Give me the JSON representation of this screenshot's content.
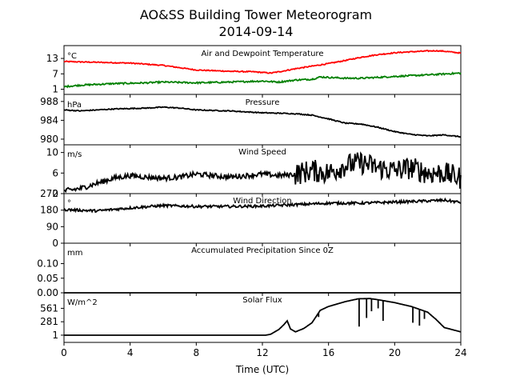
{
  "chart_data": {
    "title": "AO&SS Building Tower Meteorogram",
    "subtitle": "2014-09-14",
    "xlabel": "Time (UTC)",
    "x_ticks": [
      0,
      4,
      8,
      12,
      16,
      20,
      24
    ],
    "xlim": [
      0,
      24
    ],
    "panels": [
      {
        "type": "line",
        "title": "Air and Dewpoint Temperature",
        "unit": "°C",
        "ylim": [
          -1,
          18
        ],
        "y_ticks": [
          1,
          7,
          13
        ],
        "series": [
          {
            "color": "#ff0000",
            "noise": 0.2,
            "points": [
              [
                0,
                11.8
              ],
              [
                2,
                11.5
              ],
              [
                4,
                11.2
              ],
              [
                6,
                10.3
              ],
              [
                8,
                8.5
              ],
              [
                10,
                8
              ],
              [
                11.5,
                7.8
              ],
              [
                12.5,
                7.3
              ],
              [
                13,
                7.8
              ],
              [
                14,
                9
              ],
              [
                15,
                10
              ],
              [
                16,
                11
              ],
              [
                17,
                12.2
              ],
              [
                18,
                13.5
              ],
              [
                19,
                14.5
              ],
              [
                20,
                15.2
              ],
              [
                21,
                15.6
              ],
              [
                22,
                15.9
              ],
              [
                22.5,
                16
              ],
              [
                23,
                15.8
              ],
              [
                24,
                15.1
              ]
            ]
          },
          {
            "color": "#008000",
            "noise": 0.3,
            "points": [
              [
                0,
                2
              ],
              [
                1,
                2.6
              ],
              [
                3,
                3.2
              ],
              [
                5,
                3.5
              ],
              [
                6,
                3.8
              ],
              [
                8,
                3.5
              ],
              [
                10,
                3.8
              ],
              [
                12,
                4.2
              ],
              [
                13,
                3.8
              ],
              [
                14,
                4.6
              ],
              [
                15,
                4.9
              ],
              [
                15.5,
                5.8
              ],
              [
                17,
                5.3
              ],
              [
                18,
                5.3
              ],
              [
                20,
                6
              ],
              [
                22,
                6.6
              ],
              [
                24,
                7.3
              ]
            ]
          }
        ]
      },
      {
        "type": "line",
        "title": "Pressure",
        "unit": "hPa",
        "ylim": [
          978.8,
          989.5
        ],
        "y_ticks": [
          980,
          984,
          988
        ],
        "series": [
          {
            "color": "#000000",
            "noise": 0.1,
            "points": [
              [
                0,
                986.2
              ],
              [
                1,
                986
              ],
              [
                3,
                986.4
              ],
              [
                5,
                986.6
              ],
              [
                6,
                986.8
              ],
              [
                7,
                986.6
              ],
              [
                8,
                986.2
              ],
              [
                10,
                986
              ],
              [
                12,
                985.6
              ],
              [
                14,
                985.4
              ],
              [
                15,
                985.1
              ],
              [
                16,
                984.3
              ],
              [
                17,
                983.4
              ],
              [
                18,
                983.2
              ],
              [
                19,
                982.5
              ],
              [
                20,
                981.6
              ],
              [
                21,
                981
              ],
              [
                22,
                980.7
              ],
              [
                23,
                980.9
              ],
              [
                24,
                980.5
              ]
            ]
          }
        ]
      },
      {
        "type": "line",
        "title": "Wind Speed",
        "unit": "m/s",
        "ylim": [
          2,
          11.5
        ],
        "y_ticks": [
          2,
          6,
          10
        ],
        "series": [
          {
            "color": "#000000",
            "noise": 0.5,
            "noise_ramp": [
              14,
              24,
              2.2
            ],
            "points": [
              [
                0,
                2.5
              ],
              [
                1,
                3
              ],
              [
                2,
                4
              ],
              [
                3,
                5
              ],
              [
                4,
                5.5
              ],
              [
                5,
                5.2
              ],
              [
                6,
                5
              ],
              [
                7,
                5.2
              ],
              [
                8,
                5.8
              ],
              [
                9,
                5.5
              ],
              [
                10,
                5.2
              ],
              [
                11,
                5.5
              ],
              [
                12,
                5.8
              ],
              [
                13,
                5.5
              ],
              [
                14,
                5.8
              ],
              [
                15,
                6.5
              ],
              [
                16,
                6
              ],
              [
                17,
                7.5
              ],
              [
                18,
                8
              ],
              [
                19,
                7
              ],
              [
                20,
                6.5
              ],
              [
                21,
                7
              ],
              [
                22,
                6
              ],
              [
                23,
                6
              ],
              [
                24,
                5
              ]
            ]
          }
        ]
      },
      {
        "type": "line",
        "title": "Wind Direction",
        "unit": "°",
        "ylim": [
          0,
          270
        ],
        "y_ticks": [
          0,
          90,
          180,
          270
        ],
        "series": [
          {
            "color": "#000000",
            "noise": 7,
            "points": [
              [
                0,
                183
              ],
              [
                2,
                176
              ],
              [
                4,
                192
              ],
              [
                6,
                205
              ],
              [
                8,
                200
              ],
              [
                10,
                200
              ],
              [
                12,
                202
              ],
              [
                14,
                210
              ],
              [
                16,
                218
              ],
              [
                18,
                218
              ],
              [
                20,
                224
              ],
              [
                22,
                230
              ],
              [
                23,
                234
              ],
              [
                24,
                222
              ]
            ]
          }
        ]
      },
      {
        "type": "line",
        "title": "Accumulated Precipitation Since 0Z",
        "unit": "mm",
        "ylim": [
          0,
          0.17
        ],
        "y_ticks": [
          0.0,
          0.05,
          0.1
        ],
        "y_tick_labels": [
          "0.00",
          "0.05",
          "0.10"
        ],
        "series": [
          {
            "color": "#000000",
            "noise": 0,
            "points": [
              [
                0,
                0
              ],
              [
                24,
                0
              ]
            ]
          }
        ]
      },
      {
        "type": "line",
        "title": "Solar Flux",
        "unit": "W/m^2",
        "ylim": [
          -150,
          885
        ],
        "y_ticks": [
          1,
          281,
          561
        ],
        "series": [
          {
            "color": "#000000",
            "noise": 0,
            "points": [
              [
                0,
                1
              ],
              [
                12.2,
                1
              ],
              [
                12.5,
                20
              ],
              [
                13,
                120
              ],
              [
                13.3,
                220
              ],
              [
                13.5,
                300
              ],
              [
                13.7,
                130
              ],
              [
                14,
                70
              ],
              [
                14.5,
                140
              ],
              [
                15,
                260
              ],
              [
                15.5,
                520
              ],
              [
                16,
                600
              ],
              [
                17,
                700
              ],
              [
                17.8,
                760
              ],
              [
                18.5,
                765
              ],
              [
                19,
                740
              ],
              [
                20,
                680
              ],
              [
                21,
                600
              ],
              [
                22,
                480
              ],
              [
                22.5,
                330
              ],
              [
                23,
                160
              ],
              [
                24,
                70
              ]
            ]
          }
        ],
        "spikes": [
          [
            15.4,
            380
          ],
          [
            17.85,
            180
          ],
          [
            18.3,
            360
          ],
          [
            18.6,
            500
          ],
          [
            19,
            560
          ],
          [
            19.3,
            300
          ],
          [
            21.1,
            260
          ],
          [
            21.5,
            200
          ],
          [
            21.8,
            340
          ],
          [
            22.2,
            430
          ]
        ]
      }
    ]
  }
}
